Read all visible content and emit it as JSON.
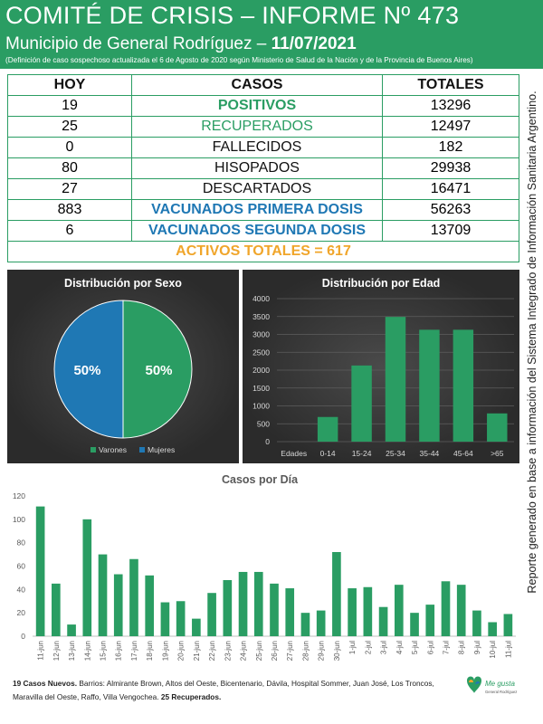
{
  "header": {
    "title": "COMITÉ DE CRISIS – INFORME Nº 473",
    "subtitle_prefix": "Municipio de General Rodríguez – ",
    "date": "11/07/2021",
    "note": "(Definición de caso sospechoso actualizada el 6 de Agosto de 2020 según Ministerio de Salud de la Nación y de la Provincia de Buenos Aires)"
  },
  "table": {
    "headers": {
      "hoy": "HOY",
      "casos": "CASOS",
      "totales": "TOTALES"
    },
    "rows": [
      {
        "hoy": "19",
        "label": "POSITIVOS",
        "total": "13296"
      },
      {
        "hoy": "25",
        "label": "RECUPERADOS",
        "total": "12497"
      },
      {
        "hoy": "0",
        "label": "FALLECIDOS",
        "total": "182"
      },
      {
        "hoy": "80",
        "label": "HISOPADOS",
        "total": "29938"
      },
      {
        "hoy": "27",
        "label": "DESCARTADOS",
        "total": "16471"
      },
      {
        "hoy": "883",
        "label": "VACUNADOS PRIMERA DOSIS",
        "total": "56263"
      },
      {
        "hoy": "6",
        "label": "VACUNADOS SEGUNDA DOSIS",
        "total": "13709"
      }
    ],
    "activos": "ACTIVOS TOTALES = 617"
  },
  "side_note": "Reporte generado en base a información del Sistema Integrado de Información Sanitaria Argentino.",
  "colors": {
    "green": "#2a9d63",
    "blue": "#1f78b4",
    "orange": "#f0a52a"
  },
  "chart_data": [
    {
      "type": "pie",
      "title": "Distribución por Sexo",
      "labels": [
        "Varones",
        "Mujeres"
      ],
      "values": [
        50,
        50
      ],
      "display": [
        "50%",
        "50%"
      ],
      "colors": [
        "#2a9d63",
        "#1f78b4"
      ],
      "legend": "bottom"
    },
    {
      "type": "bar",
      "title": "Distribución por Edad",
      "xlabel": "Edades",
      "categories": [
        "0-14",
        "15-24",
        "25-34",
        "35-44",
        "45-64",
        ">65"
      ],
      "values": [
        690,
        2130,
        3490,
        3130,
        3130,
        790
      ],
      "ylim": [
        0,
        4000
      ],
      "yticks": [
        0,
        500,
        1000,
        1500,
        2000,
        2500,
        3000,
        3500,
        4000
      ],
      "color": "#2a9d63",
      "grid": true
    },
    {
      "type": "bar",
      "title": "Casos por Día",
      "categories": [
        "11-jun",
        "12-jun",
        "13-jun",
        "14-jun",
        "15-jun",
        "16-jun",
        "17-jun",
        "18-jun",
        "19-jun",
        "20-jun",
        "21-jun",
        "22-jun",
        "23-jun",
        "24-jun",
        "25-jun",
        "26-jun",
        "27-jun",
        "28-jun",
        "29-jun",
        "30-jun",
        "1-jul",
        "2-jul",
        "3-jul",
        "4-jul",
        "5-jul",
        "6-jul",
        "7-jul",
        "8-jul",
        "9-jul",
        "10-jul",
        "11-jul"
      ],
      "values": [
        111,
        45,
        10,
        100,
        70,
        53,
        66,
        52,
        29,
        30,
        15,
        37,
        48,
        55,
        55,
        45,
        41,
        20,
        22,
        72,
        41,
        42,
        25,
        44,
        20,
        27,
        47,
        44,
        22,
        12,
        19
      ],
      "ylim": [
        0,
        120
      ],
      "yticks": [
        0,
        20,
        40,
        60,
        80,
        100,
        120
      ],
      "color": "#2a9d63",
      "grid": false
    }
  ],
  "footer": {
    "nuevos": "19 Casos Nuevos.",
    "barrios": " Barrios: Almirante Brown, Altos del Oeste, Bicentenario, Dávila, Hospital Sommer, Juan José, Los Troncos, Maravilla del Oeste, Raffo, Villa Vengochea. ",
    "recuperados": "25 Recuperados."
  },
  "logo": {
    "line1": "Me gusta",
    "line2": "General Rodríguez"
  }
}
